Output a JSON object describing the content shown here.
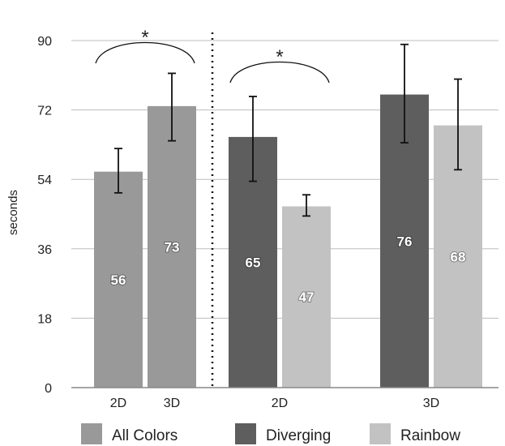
{
  "chart_data": {
    "type": "bar",
    "ylabel": "seconds",
    "ylim": [
      0,
      90
    ],
    "yticks": [
      "0",
      "18",
      "36",
      "54",
      "72",
      "90"
    ],
    "grid": true,
    "legend_position": "bottom",
    "colors": {
      "All Colors": "#999999",
      "Diverging": "#5e5e5e",
      "Rainbow": "#c2c2c2"
    },
    "legend": [
      "All Colors",
      "Diverging",
      "Rainbow"
    ],
    "bars": [
      {
        "group": "All Colors",
        "category": "2D",
        "series": "All Colors",
        "value": 56,
        "err_low": 50.5,
        "err_high": 62,
        "label": "56"
      },
      {
        "group": "All Colors",
        "category": "3D",
        "series": "All Colors",
        "value": 73,
        "err_low": 64,
        "err_high": 81.5,
        "label": "73"
      },
      {
        "group": "2D",
        "category": "2D",
        "series": "Diverging",
        "value": 65,
        "err_low": 53.5,
        "err_high": 75.5,
        "label": "65"
      },
      {
        "group": "2D",
        "category": "2D",
        "series": "Rainbow",
        "value": 47,
        "err_low": 44.5,
        "err_high": 50,
        "label": "47"
      },
      {
        "group": "3D",
        "category": "3D",
        "series": "Diverging",
        "value": 76,
        "err_low": 63.5,
        "err_high": 89,
        "label": "76"
      },
      {
        "group": "3D",
        "category": "3D",
        "series": "Rainbow",
        "value": 68,
        "err_low": 56.5,
        "err_high": 80,
        "label": "68"
      }
    ],
    "x_tick_labels": [
      "2D",
      "3D",
      "2D",
      "3D"
    ],
    "annotations": [
      {
        "text": "*",
        "between": [
          "All Colors 2D",
          "All Colors 3D"
        ]
      },
      {
        "text": "*",
        "between": [
          "Diverging 2D",
          "Rainbow 2D"
        ]
      }
    ]
  }
}
